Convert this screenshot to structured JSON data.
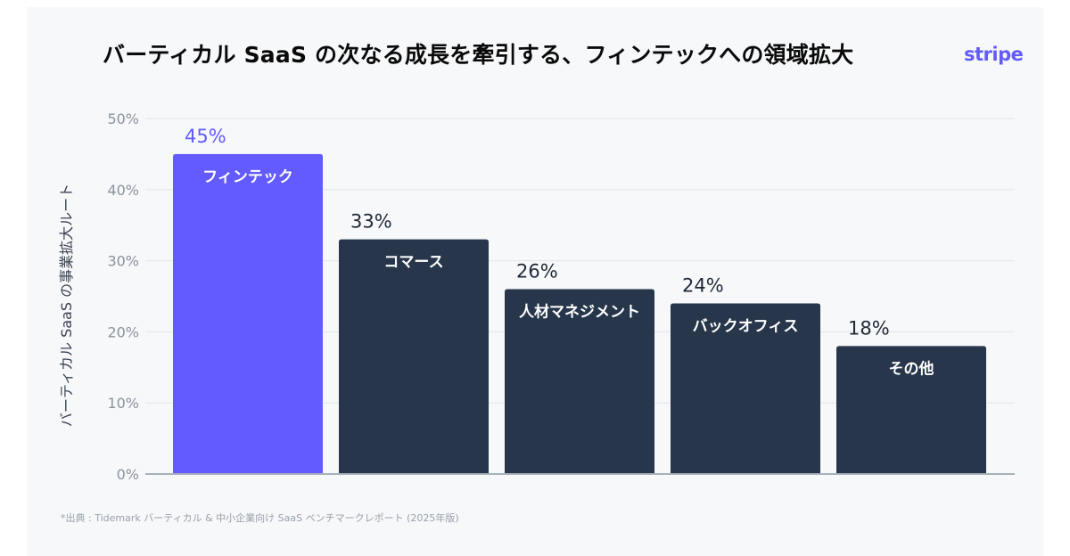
{
  "header": {
    "title": "バーティカル SaaS の次なる成長を牽引する、フィンテックへの領域拡大",
    "logo_text": "stripe"
  },
  "footer": {
    "source": "*出典 : Tidemark バーティカル & 中小企業向け SaaS ベンチマークレポート (2025年版)"
  },
  "colors": {
    "highlight": "#635bff",
    "bar": "#27364b",
    "grid": "#e1e5ea",
    "axis": "#a9b0ba"
  },
  "chart_data": {
    "type": "bar",
    "title": "バーティカル SaaS の次なる成長を牽引する、フィンテックへの領域拡大",
    "ylabel": "バーティカル SaaS の事業拡大ルート",
    "xlabel": "",
    "categories": [
      "フィンテック",
      "コマース",
      "人材マネジメント",
      "バックオフィス",
      "その他"
    ],
    "values": [
      45,
      33,
      26,
      24,
      18
    ],
    "value_labels": [
      "45%",
      "33%",
      "26%",
      "24%",
      "18%"
    ],
    "highlight_index": 0,
    "ylim": [
      0,
      50
    ],
    "yticks": [
      0,
      10,
      20,
      30,
      40,
      50
    ],
    "ytick_labels": [
      "0%",
      "10%",
      "20%",
      "30%",
      "40%",
      "50%"
    ],
    "grid": true,
    "legend": "none"
  }
}
